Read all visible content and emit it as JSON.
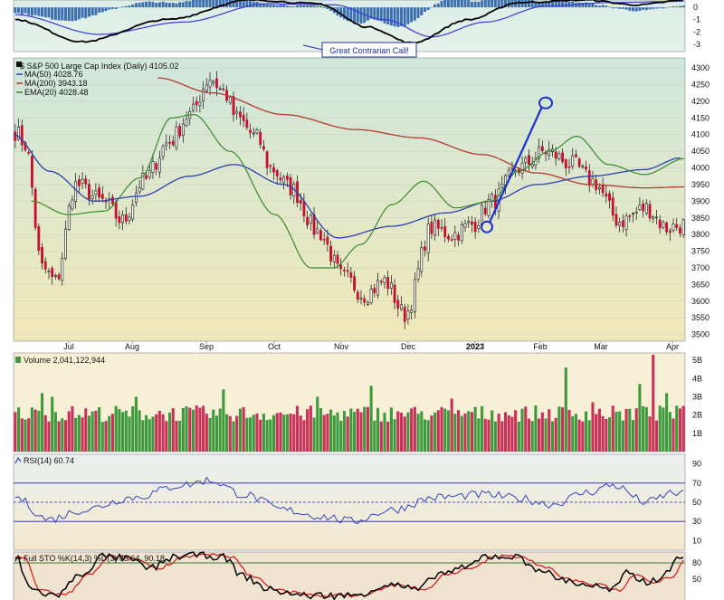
{
  "chart_data": [
    {
      "type": "line",
      "panel": "macd",
      "yticks": [
        "0",
        "-1",
        "-2",
        "-3"
      ],
      "ylim": [
        -3.6,
        0.6
      ],
      "annotation": "Great Contrarian Call!",
      "colors": {
        "macd": "#000000",
        "signal": "#3b3bd6",
        "histogram": "#3c6fb0",
        "bg_top": "#dbeee6",
        "bg_bottom": "#e6f1e9"
      }
    },
    {
      "type": "candlestick",
      "panel": "price",
      "title": "$ S&P 500 Large Cap Index (Daily) 4105.02",
      "legend": [
        {
          "text": "MA(50) 4028.76",
          "color": "#2b3fb0"
        },
        {
          "text": "MA(200) 3943.18",
          "color": "#b23a2e"
        },
        {
          "text": "EMA(20) 4028.48",
          "color": "#3a8a2e"
        }
      ],
      "yticks": [
        4300,
        4250,
        4200,
        4150,
        4100,
        4050,
        4000,
        3950,
        3900,
        3850,
        3800,
        3750,
        3700,
        3650,
        3600,
        3550,
        3500
      ],
      "ylim": [
        3480,
        4330
      ],
      "months": [
        "Jul",
        "Aug",
        "Sep",
        "Oct",
        "Nov",
        "Dec",
        "2023",
        "Feb",
        "Mar",
        "Apr"
      ],
      "series": [
        {
          "name": "MA(50)",
          "values": [
            [
              0,
              4100
            ],
            [
              40,
              3990
            ],
            [
              90,
              3900
            ],
            [
              140,
              3915
            ],
            [
              195,
              3975
            ],
            [
              245,
              4010
            ],
            [
              300,
              3950
            ],
            [
              360,
              3790
            ],
            [
              420,
              3825
            ],
            [
              480,
              3865
            ],
            [
              530,
              3900
            ],
            [
              580,
              3950
            ],
            [
              640,
              3975
            ],
            [
              700,
              3995
            ],
            [
              740,
              4030
            ]
          ]
        },
        {
          "name": "MA(200)",
          "values": [
            [
              160,
              4270
            ],
            [
              220,
              4225
            ],
            [
              300,
              4160
            ],
            [
              380,
              4115
            ],
            [
              450,
              4090
            ],
            [
              520,
              4040
            ],
            [
              580,
              3985
            ],
            [
              640,
              3950
            ],
            [
              700,
              3940
            ],
            [
              745,
              3943
            ]
          ]
        },
        {
          "name": "EMA(20)",
          "values": [
            [
              20,
              3900
            ],
            [
              60,
              3860
            ],
            [
              100,
              3870
            ],
            [
              140,
              3970
            ],
            [
              175,
              4150
            ],
            [
              200,
              4160
            ],
            [
              240,
              4050
            ],
            [
              290,
              3860
            ],
            [
              330,
              3700
            ],
            [
              355,
              3700
            ],
            [
              385,
              3770
            ],
            [
              420,
              3890
            ],
            [
              455,
              3960
            ],
            [
              490,
              3880
            ],
            [
              530,
              3900
            ],
            [
              560,
              3990
            ],
            [
              595,
              4050
            ],
            [
              625,
              4095
            ],
            [
              660,
              4010
            ],
            [
              700,
              3980
            ],
            [
              745,
              4028
            ]
          ]
        }
      ],
      "arrow": {
        "from": 3823,
        "to": 4195
      },
      "colors": {
        "up": "#2e8b2e",
        "down": "#c8102e",
        "wick": "#111111",
        "bg_top": "#cfe7dd",
        "bg_bottom": "#f1e8b8"
      }
    },
    {
      "type": "bar",
      "panel": "volume",
      "title": "Volume 2,041,122,944",
      "yticks": [
        "5B",
        "4B",
        "3B",
        "2B",
        "1B"
      ],
      "ylim": [
        0,
        5.4
      ],
      "colors": {
        "up": "#3f9a3f",
        "down": "#c8325a",
        "bg_top": "#f7f0d6",
        "bg_bottom": "#f7f0d6"
      }
    },
    {
      "type": "line",
      "panel": "rsi",
      "title": "RSI(14) 60.74",
      "yticks": [
        90,
        70,
        50,
        30,
        10
      ],
      "ylim": [
        0,
        100
      ],
      "levels": [
        70,
        50,
        30
      ],
      "colors": {
        "line": "#3344bb",
        "level": "#2222aa",
        "bg_top": "#eaf0f0",
        "bg_bottom": "#f4e9cf"
      }
    },
    {
      "type": "line",
      "panel": "stochastic",
      "title": "Full STO %K(14,3) %D(3) 85.64, 90.18",
      "yticks": [
        80,
        50
      ],
      "ylim": [
        0,
        100
      ],
      "levels": [
        80
      ],
      "colors": {
        "k": "#000000",
        "d": "#d42222",
        "level": "#2f7d2f",
        "bg_top": "#f0e3cf",
        "bg_bottom": "#f0e3cf"
      }
    }
  ]
}
